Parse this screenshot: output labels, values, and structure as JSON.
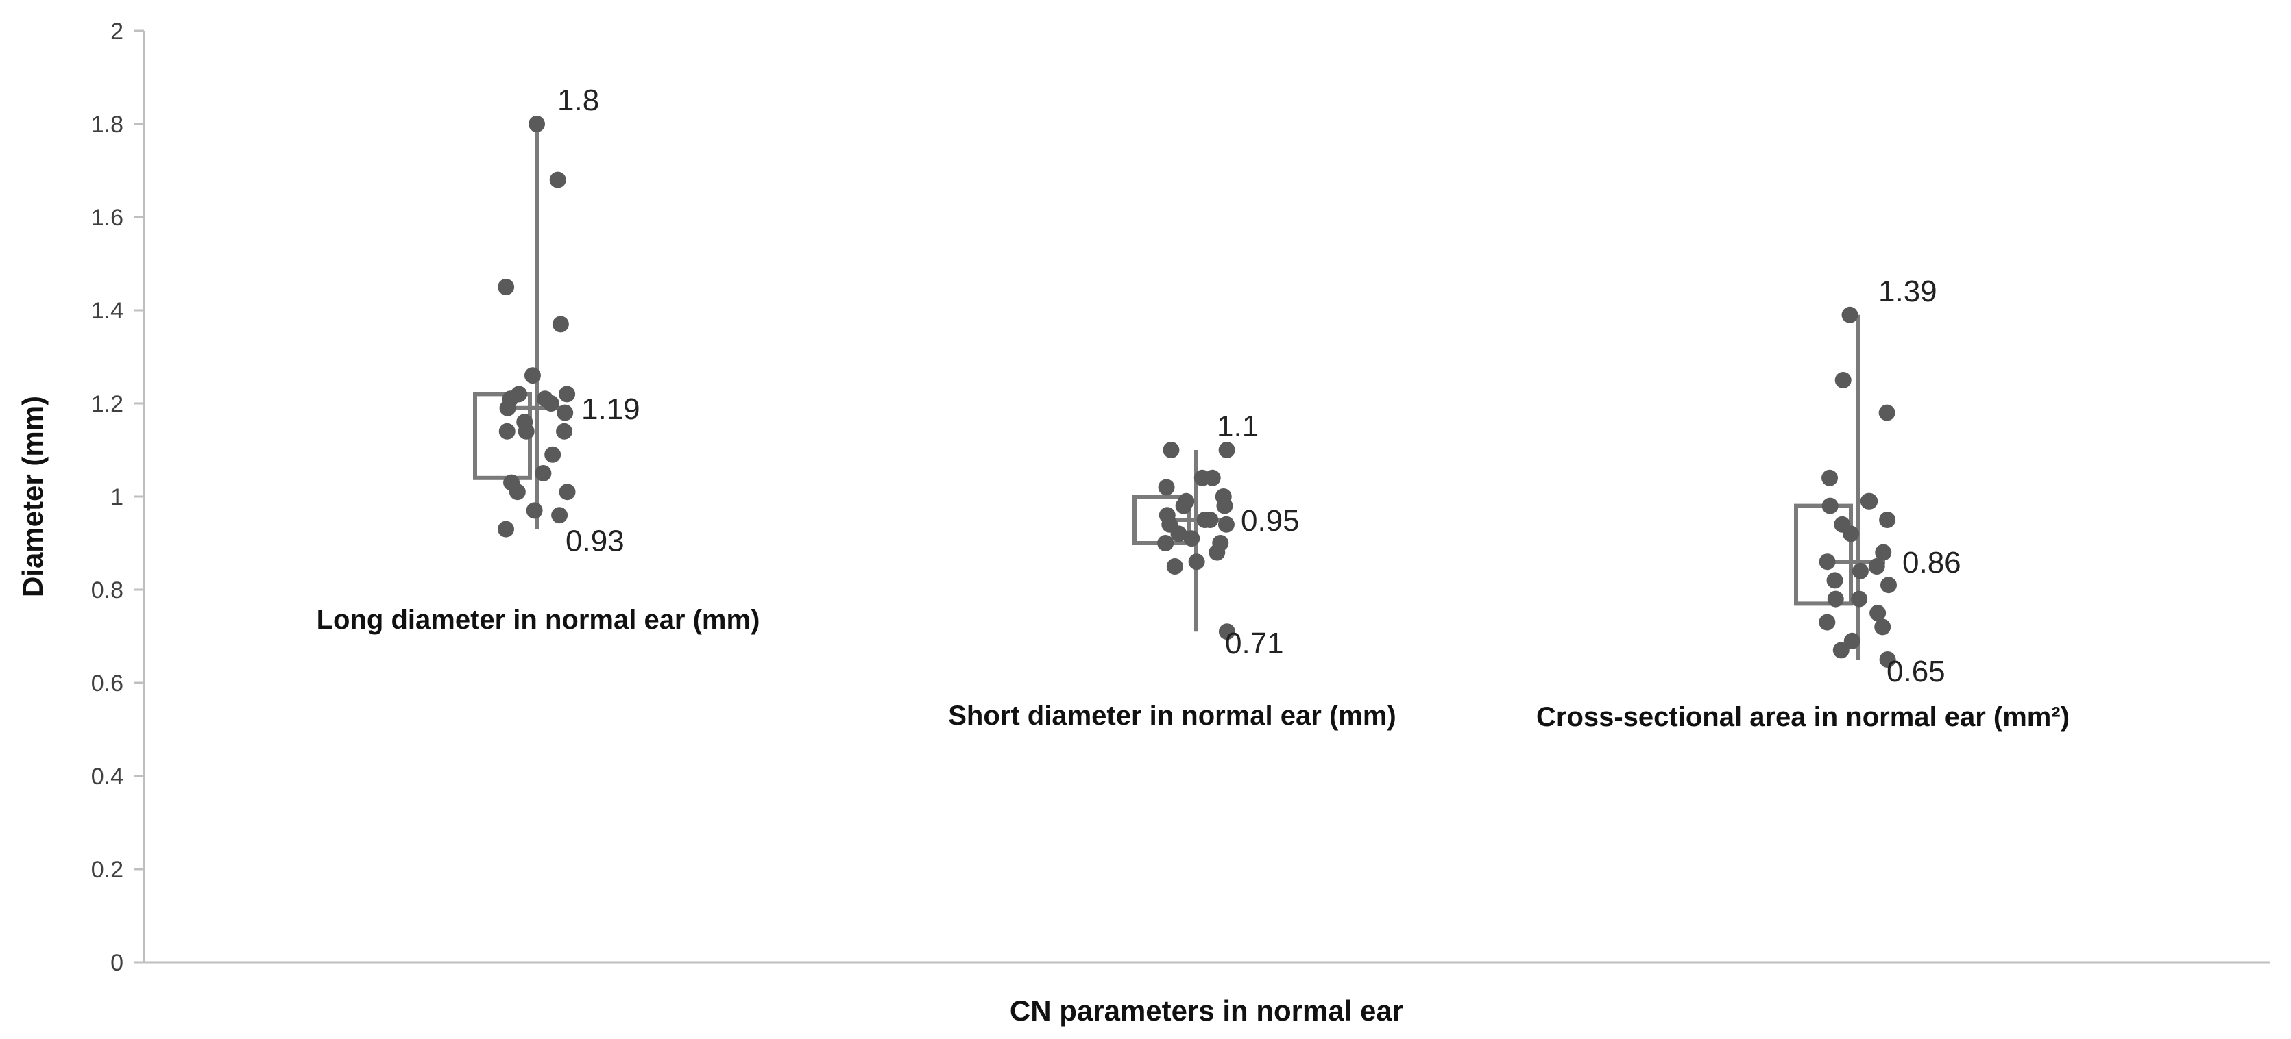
{
  "chart_data": {
    "type": "boxplot",
    "xlabel": "CN parameters in normal ear",
    "ylabel": "Diameter (mm)",
    "ylim": [
      0,
      2
    ],
    "yticks": [
      "0",
      "0.2",
      "0.4",
      "0.6",
      "0.8",
      "1",
      "1.2",
      "1.4",
      "1.6",
      "1.8",
      "2"
    ],
    "grid": false,
    "series": [
      {
        "category": "Long diameter in normal ear (mm)",
        "min": 0.93,
        "q1": 1.04,
        "median": 1.19,
        "q3": 1.22,
        "max": 1.8,
        "labels": {
          "max": "1.8",
          "median": "1.19",
          "min": "0.93"
        },
        "points": [
          1.8,
          1.68,
          1.45,
          1.37,
          1.26,
          1.22,
          1.22,
          1.21,
          1.21,
          1.2,
          1.19,
          1.18,
          1.16,
          1.14,
          1.14,
          1.14,
          1.09,
          1.05,
          1.03,
          1.01,
          1.01,
          0.97,
          0.96,
          0.93
        ]
      },
      {
        "category": "Short diameter in normal ear (mm)",
        "min": 0.71,
        "q1": 0.9,
        "median": 0.95,
        "q3": 1.0,
        "max": 1.1,
        "labels": {
          "max": "1.1",
          "median": "0.95",
          "min": "0.71"
        },
        "points": [
          1.1,
          1.1,
          1.04,
          1.04,
          1.02,
          1.0,
          0.99,
          0.98,
          0.98,
          0.96,
          0.95,
          0.95,
          0.94,
          0.94,
          0.92,
          0.91,
          0.9,
          0.9,
          0.88,
          0.86,
          0.85,
          0.71
        ]
      },
      {
        "category": "Cross-sectional area in normal ear (mm²)",
        "min": 0.65,
        "q1": 0.77,
        "median": 0.86,
        "q3": 0.98,
        "max": 1.39,
        "labels": {
          "max": "1.39",
          "median": "0.86",
          "min": "0.65"
        },
        "points": [
          1.39,
          1.25,
          1.18,
          1.04,
          0.99,
          0.99,
          0.98,
          0.95,
          0.94,
          0.92,
          0.88,
          0.86,
          0.85,
          0.84,
          0.82,
          0.81,
          0.78,
          0.78,
          0.75,
          0.73,
          0.72,
          0.69,
          0.67,
          0.65
        ]
      }
    ]
  }
}
